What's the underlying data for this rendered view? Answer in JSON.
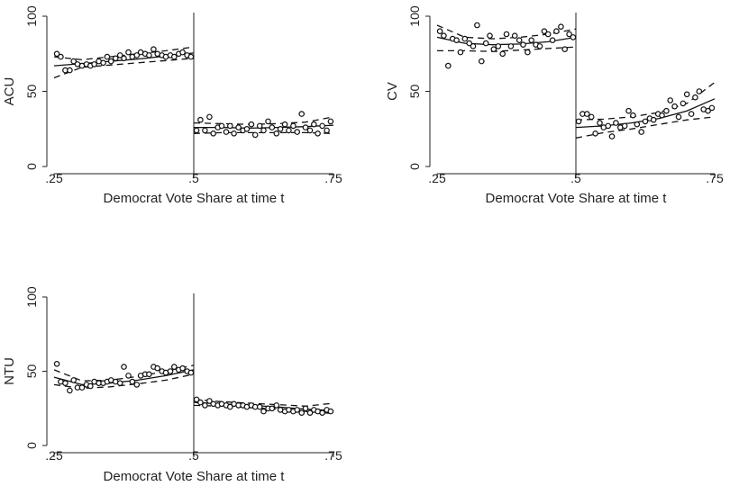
{
  "chart_data": [
    {
      "type": "scatter",
      "ylabel": "ACU",
      "xlabel": "Democrat Vote Share at time t",
      "xlim": [
        0.25,
        0.75
      ],
      "ylim": [
        0,
        100
      ],
      "xticks": [
        0.25,
        0.5,
        0.75
      ],
      "xtick_labels": [
        ".25",
        ".5",
        ".75"
      ],
      "yticks": [
        0,
        50,
        100
      ],
      "ytick_labels": [
        "0",
        "50",
        "100"
      ],
      "cutoff": 0.5,
      "grid": false,
      "series": [
        {
          "role": "bin-means",
          "x": [
            0.255,
            0.262,
            0.27,
            0.278,
            0.285,
            0.292,
            0.3,
            0.308,
            0.315,
            0.322,
            0.33,
            0.338,
            0.345,
            0.352,
            0.36,
            0.368,
            0.375,
            0.383,
            0.39,
            0.398,
            0.405,
            0.413,
            0.42,
            0.428,
            0.435,
            0.443,
            0.45,
            0.458,
            0.465,
            0.473,
            0.48,
            0.488,
            0.495,
            0.505,
            0.512,
            0.52,
            0.528,
            0.535,
            0.543,
            0.55,
            0.558,
            0.565,
            0.572,
            0.58,
            0.588,
            0.595,
            0.603,
            0.61,
            0.618,
            0.625,
            0.633,
            0.64,
            0.648,
            0.655,
            0.663,
            0.67,
            0.678,
            0.685,
            0.693,
            0.7,
            0.708,
            0.715,
            0.722,
            0.73,
            0.738,
            0.745
          ],
          "y": [
            75,
            73,
            64,
            64,
            70,
            68,
            67,
            68,
            67,
            68,
            70,
            69,
            73,
            70,
            72,
            74,
            72,
            76,
            73,
            74,
            76,
            75,
            74,
            78,
            75,
            74,
            73,
            74,
            73,
            75,
            76,
            74,
            73,
            24,
            31,
            24,
            33,
            22,
            26,
            27,
            23,
            27,
            22,
            26,
            24,
            25,
            28,
            21,
            27,
            24,
            30,
            26,
            22,
            25,
            28,
            24,
            27,
            23,
            35,
            26,
            24,
            28,
            22,
            27,
            24,
            30
          ]
        },
        {
          "role": "fit",
          "left": {
            "x": [
              0.25,
              0.3,
              0.35,
              0.4,
              0.45,
              0.5
            ],
            "y": [
              67,
              68.5,
              70,
              71.5,
              73.5,
              75.5
            ]
          },
          "right": {
            "x": [
              0.5,
              0.55,
              0.6,
              0.65,
              0.7,
              0.75
            ],
            "y": [
              26,
              26,
              25.5,
              26,
              26.5,
              27.5
            ]
          }
        },
        {
          "role": "ci-upper",
          "left": {
            "x": [
              0.25,
              0.3,
              0.35,
              0.4,
              0.45,
              0.5
            ],
            "y": [
              73,
              71,
              73,
              75,
              77,
              79.5
            ]
          },
          "right": {
            "x": [
              0.5,
              0.55,
              0.6,
              0.65,
              0.7,
              0.75
            ],
            "y": [
              29,
              28.5,
              28,
              28.5,
              29.5,
              33
            ]
          }
        },
        {
          "role": "ci-lower",
          "left": {
            "x": [
              0.25,
              0.3,
              0.35,
              0.4,
              0.45,
              0.5
            ],
            "y": [
              59,
              66,
              67.5,
              69,
              70.5,
              72
            ]
          },
          "right": {
            "x": [
              0.5,
              0.55,
              0.6,
              0.65,
              0.7,
              0.75
            ],
            "y": [
              22,
              22.5,
              22.5,
              22.5,
              22.5,
              22
            ]
          }
        }
      ]
    },
    {
      "type": "scatter",
      "ylabel": "CV",
      "xlabel": "Democrat Vote Share at time t",
      "xlim": [
        0.25,
        0.75
      ],
      "ylim": [
        0,
        100
      ],
      "xticks": [
        0.25,
        0.5,
        0.75
      ],
      "xtick_labels": [
        ".25",
        ".5",
        ".75"
      ],
      "yticks": [
        0,
        50,
        100
      ],
      "ytick_labels": [
        "0",
        "50",
        "100"
      ],
      "cutoff": 0.5,
      "grid": false,
      "series": [
        {
          "role": "bin-means",
          "x": [
            0.255,
            0.262,
            0.27,
            0.278,
            0.285,
            0.292,
            0.3,
            0.308,
            0.315,
            0.322,
            0.33,
            0.338,
            0.345,
            0.352,
            0.36,
            0.368,
            0.375,
            0.383,
            0.39,
            0.398,
            0.405,
            0.413,
            0.42,
            0.428,
            0.435,
            0.443,
            0.45,
            0.458,
            0.465,
            0.473,
            0.48,
            0.488,
            0.495,
            0.505,
            0.512,
            0.52,
            0.528,
            0.535,
            0.543,
            0.55,
            0.558,
            0.565,
            0.572,
            0.58,
            0.588,
            0.595,
            0.603,
            0.61,
            0.618,
            0.625,
            0.633,
            0.64,
            0.648,
            0.655,
            0.663,
            0.67,
            0.678,
            0.685,
            0.693,
            0.7,
            0.708,
            0.715,
            0.722,
            0.73,
            0.738,
            0.745
          ],
          "y": [
            90,
            87,
            67,
            85,
            84,
            76,
            85,
            82,
            80,
            94,
            70,
            82,
            87,
            78,
            80,
            75,
            88,
            80,
            87,
            84,
            81,
            76,
            84,
            81,
            80,
            90,
            88,
            84,
            90,
            93,
            78,
            88,
            86,
            30,
            35,
            35,
            33,
            22,
            29,
            26,
            27,
            20,
            29,
            26,
            27,
            37,
            34,
            28,
            23,
            30,
            32,
            31,
            35,
            34,
            37,
            44,
            40,
            33,
            42,
            48,
            35,
            46,
            50,
            38,
            37,
            39
          ]
        },
        {
          "role": "fit",
          "left": {
            "x": [
              0.25,
              0.3,
              0.35,
              0.4,
              0.45,
              0.5
            ],
            "y": [
              86,
              82,
              81,
              81.5,
              83,
              86
            ]
          },
          "right": {
            "x": [
              0.5,
              0.55,
              0.6,
              0.65,
              0.7,
              0.75
            ],
            "y": [
              26,
              27,
              29,
              32,
              37,
              45
            ]
          }
        },
        {
          "role": "ci-upper",
          "left": {
            "x": [
              0.25,
              0.3,
              0.35,
              0.4,
              0.45,
              0.5
            ],
            "y": [
              94,
              86,
              85,
              86,
              88,
              91.5
            ]
          },
          "right": {
            "x": [
              0.5,
              0.55,
              0.6,
              0.65,
              0.7,
              0.75
            ],
            "y": [
              31,
              31.5,
              33,
              36,
              42,
              56
            ]
          }
        },
        {
          "role": "ci-lower",
          "left": {
            "x": [
              0.25,
              0.3,
              0.35,
              0.4,
              0.45,
              0.5
            ],
            "y": [
              77,
              77,
              76.5,
              77.5,
              78.5,
              79.5
            ]
          },
          "right": {
            "x": [
              0.5,
              0.55,
              0.6,
              0.65,
              0.7,
              0.75
            ],
            "y": [
              19,
              22.5,
              25,
              28,
              31,
              33
            ]
          }
        }
      ]
    },
    {
      "type": "scatter",
      "ylabel": "NTU",
      "xlabel": "Democrat Vote Share at time t",
      "xlim": [
        0.25,
        0.75
      ],
      "ylim": [
        0,
        100
      ],
      "xticks": [
        0.25,
        0.5,
        0.75
      ],
      "xtick_labels": [
        ".25",
        ".5",
        ".75"
      ],
      "yticks": [
        0,
        50,
        100
      ],
      "ytick_labels": [
        "0",
        "50",
        "100"
      ],
      "cutoff": 0.5,
      "grid": false,
      "series": [
        {
          "role": "bin-means",
          "x": [
            0.255,
            0.262,
            0.27,
            0.278,
            0.285,
            0.292,
            0.3,
            0.308,
            0.315,
            0.322,
            0.33,
            0.338,
            0.345,
            0.352,
            0.36,
            0.368,
            0.375,
            0.383,
            0.39,
            0.398,
            0.405,
            0.413,
            0.42,
            0.428,
            0.435,
            0.443,
            0.45,
            0.458,
            0.465,
            0.473,
            0.48,
            0.488,
            0.495,
            0.505,
            0.512,
            0.52,
            0.528,
            0.535,
            0.543,
            0.55,
            0.558,
            0.565,
            0.572,
            0.58,
            0.588,
            0.595,
            0.603,
            0.61,
            0.618,
            0.625,
            0.633,
            0.64,
            0.648,
            0.655,
            0.663,
            0.67,
            0.678,
            0.685,
            0.693,
            0.7,
            0.708,
            0.715,
            0.722,
            0.73,
            0.738,
            0.745
          ],
          "y": [
            55,
            43,
            42,
            37,
            44,
            39,
            39,
            41,
            40,
            43,
            42,
            42,
            43,
            44,
            43,
            42,
            53,
            47,
            43,
            41,
            47,
            48,
            48,
            53,
            52,
            50,
            49,
            50,
            53,
            51,
            52,
            50,
            49,
            31,
            29,
            27,
            30,
            28,
            27,
            28,
            27,
            26,
            28,
            27,
            27,
            26,
            27,
            26,
            26,
            23,
            25,
            25,
            27,
            24,
            23,
            24,
            23,
            24,
            22,
            25,
            22,
            24,
            23,
            22,
            24,
            23
          ]
        },
        {
          "role": "fit",
          "left": {
            "x": [
              0.25,
              0.3,
              0.35,
              0.4,
              0.45,
              0.5
            ],
            "y": [
              46,
              41,
              42,
              44,
              47,
              51
            ]
          },
          "right": {
            "x": [
              0.5,
              0.55,
              0.6,
              0.65,
              0.7,
              0.75
            ],
            "y": [
              29,
              28,
              27,
              26,
              24.5,
              23.5
            ]
          }
        },
        {
          "role": "ci-upper",
          "left": {
            "x": [
              0.25,
              0.3,
              0.35,
              0.4,
              0.45,
              0.5
            ],
            "y": [
              51,
              43.5,
              44,
              46.5,
              50,
              54
            ]
          },
          "right": {
            "x": [
              0.5,
              0.55,
              0.6,
              0.65,
              0.7,
              0.75
            ],
            "y": [
              31,
              29.5,
              28.5,
              27.5,
              26.5,
              28.5
            ]
          }
        },
        {
          "role": "ci-lower",
          "left": {
            "x": [
              0.25,
              0.3,
              0.35,
              0.4,
              0.45,
              0.5
            ],
            "y": [
              41,
              38.5,
              39.5,
              41.5,
              44,
              48
            ]
          },
          "right": {
            "x": [
              0.5,
              0.55,
              0.6,
              0.65,
              0.7,
              0.75
            ],
            "y": [
              27,
              26.5,
              25.5,
              24.5,
              23,
              21.5
            ]
          }
        }
      ]
    }
  ]
}
